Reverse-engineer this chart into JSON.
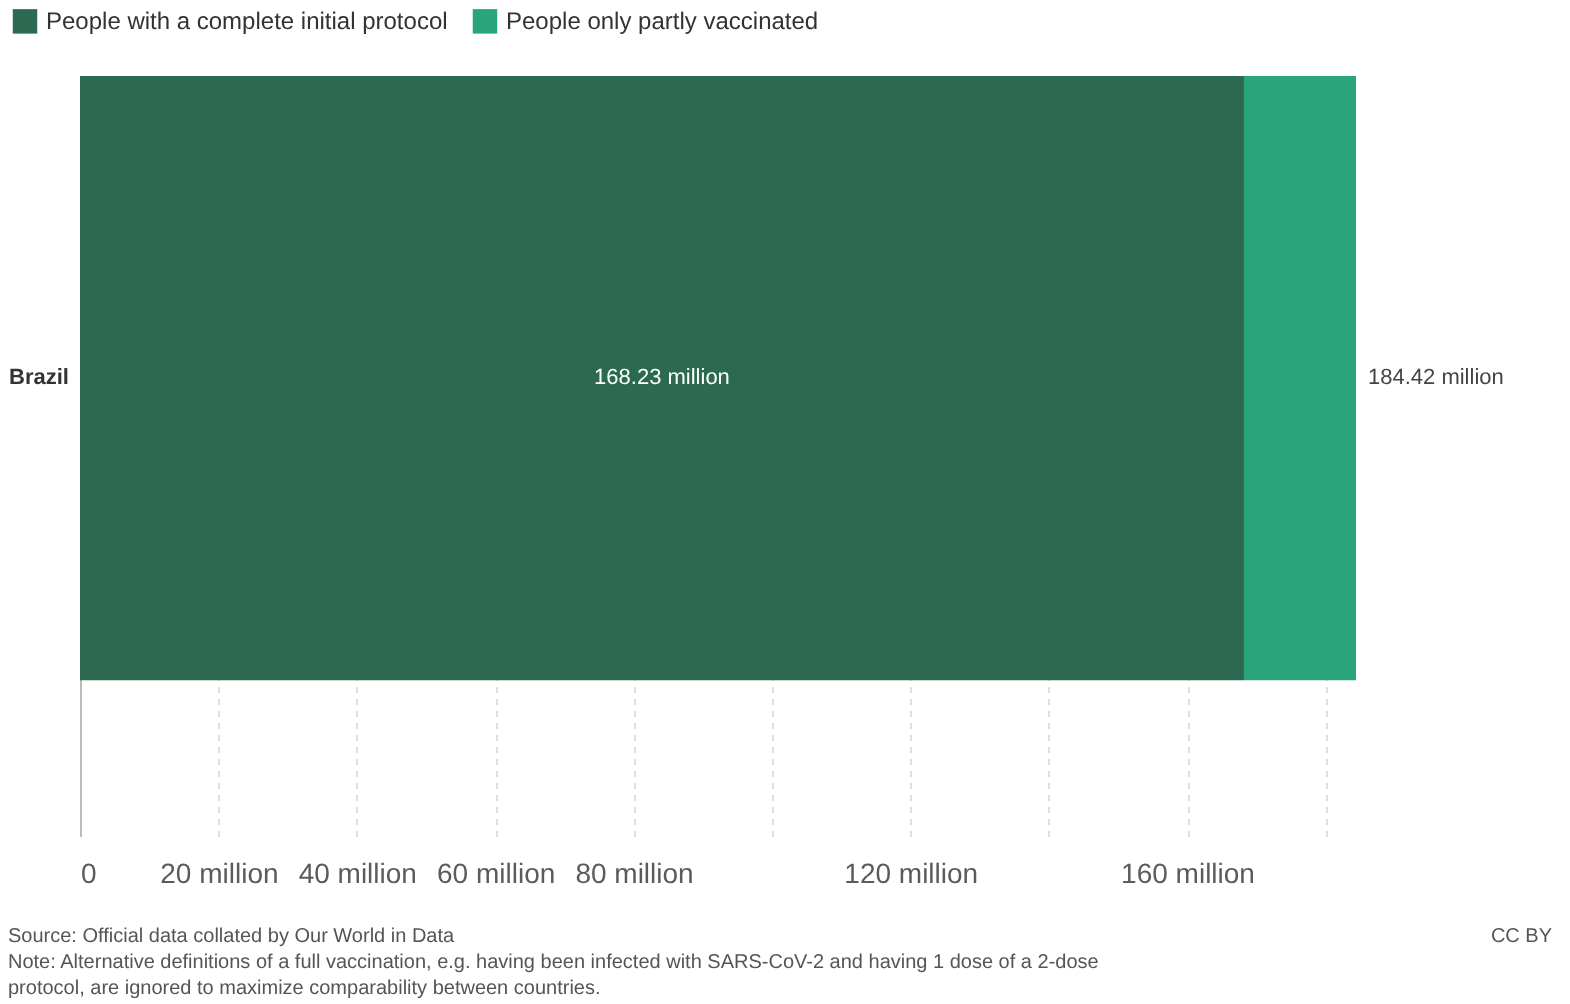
{
  "chart_data": {
    "type": "bar",
    "orientation": "horizontal",
    "stacked": true,
    "categories": [
      "Brazil"
    ],
    "series": [
      {
        "name": "People with a complete initial protocol",
        "color": "#2b6a50",
        "values": [
          168.23
        ],
        "value_labels": [
          "168.23 million"
        ]
      },
      {
        "name": "People only partly vaccinated",
        "color": "#2aa57b",
        "values": [
          16.19
        ],
        "value_labels": [
          null
        ]
      }
    ],
    "totals": [
      "184.42 million"
    ],
    "xlim": [
      0,
      185
    ],
    "xticks": [
      0,
      {
        "value": 20,
        "label": "20 million"
      },
      {
        "value": 40,
        "label": "40 million"
      },
      {
        "value": 60,
        "label": "60 million"
      },
      {
        "value": 80,
        "label": "80 million"
      },
      {
        "value": 100,
        "label": null
      },
      {
        "value": 120,
        "label": "120 million"
      },
      {
        "value": 140,
        "label": null
      },
      {
        "value": 160,
        "label": "160 million"
      },
      {
        "value": 180,
        "label": null
      }
    ],
    "grid": "x",
    "legend": "top left",
    "annotations": [
      "Source: Official data collated by Our World in Data",
      "Note: Alternative definitions of a full vaccination, e.g. having been infected with SARS-CoV-2 and having 1 dose of a 2-dose protocol, are ignored to maximize comparability between countries.",
      "CC BY"
    ]
  }
}
